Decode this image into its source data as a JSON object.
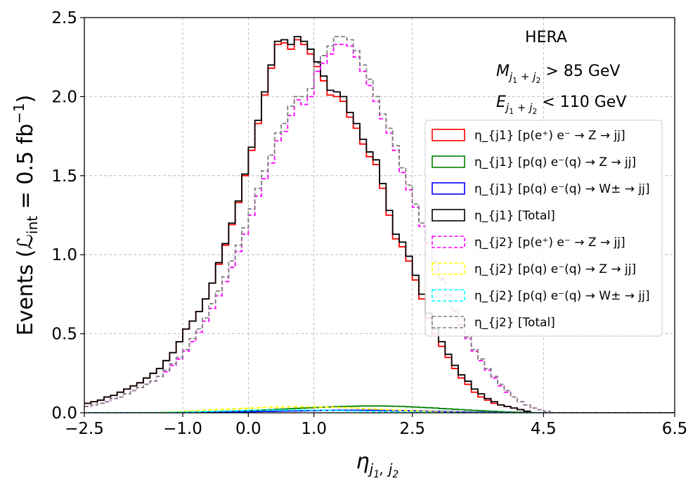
{
  "chart_data": {
    "type": "line",
    "style": "step-histogram",
    "xlabel": "η_{j1,j2}",
    "ylabel": "Events (ℒ_int = 0.5 fb⁻¹)",
    "xlim": [
      -2.5,
      6.5
    ],
    "ylim": [
      0,
      2.5
    ],
    "xticks": [
      -2.5,
      -1.0,
      0.0,
      1.0,
      2.5,
      4.5,
      6.5
    ],
    "xtick_labels": [
      "−2.5",
      "−1.0",
      "0.0",
      "1.0",
      "2.5",
      "4.5",
      "6.5"
    ],
    "yticks": [
      0,
      0.5,
      1.0,
      1.5,
      2.0,
      2.5
    ],
    "ytick_labels": [
      "0.0",
      "0.5",
      "1.0",
      "1.5",
      "2.0",
      "2.5"
    ],
    "grid": true,
    "annotations": [
      "HERA",
      "M_{j1+j2} > 85 GeV",
      "E_{j1+j2} < 110 GeV"
    ],
    "legend": {
      "position": "right",
      "entries": [
        {
          "label": "η_{j1} [p(e⁺) e⁻ → Z → jj]",
          "color": "#ff0000",
          "dash": "solid"
        },
        {
          "label": "η_{j1} [p(q) e⁻(q) → Z → jj]",
          "color": "#008000",
          "dash": "solid"
        },
        {
          "label": "η_{j1} [p(q) e⁻(q) → W± → jj]",
          "color": "#0000ff",
          "dash": "solid"
        },
        {
          "label": "η_{j1} [Total]",
          "color": "#000000",
          "dash": "solid"
        },
        {
          "label": "η_{j2} [p(e⁺) e⁻ → Z → jj]",
          "color": "#ff00ff",
          "dash": "dashed"
        },
        {
          "label": "η_{j2} [p(q) e⁻(q) → Z → jj]",
          "color": "#ffff00",
          "dash": "dashed"
        },
        {
          "label": "η_{j2} [p(q) e⁻(q) → W± → jj]",
          "color": "#00ffff",
          "dash": "dashed"
        },
        {
          "label": "η_{j2} [Total]",
          "color": "#808080",
          "dash": "dashed"
        }
      ]
    },
    "bin_start": -2.5,
    "bin_width": 0.1,
    "series": [
      {
        "name": "eta_j1 p(e+)e- Z jj",
        "color": "#ff0000",
        "dash": "solid",
        "values": [
          0.06,
          0.07,
          0.08,
          0.1,
          0.11,
          0.13,
          0.15,
          0.17,
          0.19,
          0.22,
          0.25,
          0.28,
          0.33,
          0.38,
          0.45,
          0.53,
          0.58,
          0.64,
          0.72,
          0.82,
          0.94,
          1.06,
          1.19,
          1.33,
          1.5,
          1.66,
          1.83,
          2.01,
          2.18,
          2.33,
          2.34,
          2.3,
          2.36,
          2.33,
          2.27,
          2.19,
          2.1,
          2.01,
          2.0,
          1.97,
          1.87,
          1.8,
          1.7,
          1.62,
          1.57,
          1.42,
          1.25,
          1.1,
          1.05,
          0.96,
          0.84,
          0.72,
          0.6,
          0.5,
          0.42,
          0.35,
          0.28,
          0.22,
          0.18,
          0.13,
          0.1,
          0.08,
          0.06,
          0.05,
          0.04,
          0.03,
          0.02,
          0.01,
          0,
          0,
          0,
          0,
          0,
          0,
          0,
          0,
          0,
          0,
          0,
          0,
          0,
          0,
          0,
          0,
          0,
          0,
          0,
          0,
          0,
          0
        ]
      },
      {
        "name": "eta_j1 p(q)e-(q) Z jj",
        "color": "#008000",
        "dash": "solid",
        "values": [
          0,
          0,
          0,
          0,
          0,
          0,
          0,
          0,
          0,
          0,
          0,
          0,
          0,
          0.001,
          0.002,
          0.002,
          0.003,
          0.004,
          0.005,
          0.006,
          0.007,
          0.008,
          0.01,
          0.011,
          0.013,
          0.015,
          0.016,
          0.018,
          0.02,
          0.022,
          0.024,
          0.026,
          0.028,
          0.03,
          0.032,
          0.034,
          0.036,
          0.037,
          0.039,
          0.04,
          0.041,
          0.042,
          0.043,
          0.043,
          0.043,
          0.043,
          0.042,
          0.041,
          0.04,
          0.038,
          0.036,
          0.034,
          0.032,
          0.03,
          0.027,
          0.025,
          0.022,
          0.02,
          0.017,
          0.015,
          0.013,
          0.011,
          0.009,
          0.007,
          0.005,
          0.004,
          0.003,
          0.002,
          0.001,
          0,
          0,
          0,
          0,
          0,
          0,
          0,
          0,
          0,
          0,
          0,
          0,
          0,
          0,
          0,
          0,
          0,
          0,
          0,
          0,
          0
        ]
      },
      {
        "name": "eta_j1 p(q)e-(q) W jj",
        "color": "#0000ff",
        "dash": "solid",
        "values": [
          0,
          0,
          0,
          0,
          0,
          0,
          0,
          0,
          0,
          0,
          0,
          0,
          0,
          0,
          0.001,
          0.001,
          0.002,
          0.002,
          0.003,
          0.003,
          0.004,
          0.004,
          0.005,
          0.006,
          0.006,
          0.007,
          0.008,
          0.009,
          0.009,
          0.01,
          0.011,
          0.012,
          0.012,
          0.013,
          0.014,
          0.014,
          0.015,
          0.015,
          0.016,
          0.016,
          0.016,
          0.016,
          0.016,
          0.016,
          0.016,
          0.015,
          0.015,
          0.014,
          0.014,
          0.013,
          0.012,
          0.011,
          0.01,
          0.009,
          0.008,
          0.007,
          0.006,
          0.005,
          0.004,
          0.003,
          0.003,
          0.002,
          0.002,
          0.001,
          0.001,
          0,
          0,
          0,
          0,
          0,
          0,
          0,
          0,
          0,
          0,
          0,
          0,
          0,
          0,
          0,
          0,
          0,
          0,
          0,
          0,
          0,
          0,
          0,
          0,
          0
        ]
      },
      {
        "name": "eta_j1 Total",
        "color": "#000000",
        "dash": "solid",
        "values": [
          0.06,
          0.07,
          0.08,
          0.1,
          0.11,
          0.13,
          0.15,
          0.17,
          0.19,
          0.22,
          0.25,
          0.28,
          0.33,
          0.38,
          0.45,
          0.53,
          0.58,
          0.64,
          0.72,
          0.82,
          0.95,
          1.07,
          1.2,
          1.34,
          1.51,
          1.68,
          1.85,
          2.03,
          2.2,
          2.35,
          2.36,
          2.33,
          2.38,
          2.35,
          2.3,
          2.22,
          2.13,
          2.04,
          2.03,
          2.0,
          1.9,
          1.83,
          1.73,
          1.65,
          1.6,
          1.45,
          1.28,
          1.13,
          1.08,
          0.99,
          0.87,
          0.75,
          0.63,
          0.53,
          0.45,
          0.37,
          0.3,
          0.24,
          0.2,
          0.15,
          0.12,
          0.09,
          0.07,
          0.05,
          0.04,
          0.03,
          0.02,
          0.01,
          0,
          0,
          0,
          0,
          0,
          0,
          0,
          0,
          0,
          0,
          0,
          0,
          0,
          0,
          0,
          0,
          0,
          0,
          0,
          0,
          0,
          0
        ]
      },
      {
        "name": "eta_j2 p(e+)e- Z jj",
        "color": "#ff00ff",
        "dash": "dashed",
        "values": [
          0.04,
          0.05,
          0.06,
          0.07,
          0.09,
          0.1,
          0.12,
          0.14,
          0.16,
          0.18,
          0.2,
          0.23,
          0.26,
          0.3,
          0.34,
          0.39,
          0.45,
          0.51,
          0.58,
          0.66,
          0.74,
          0.83,
          0.92,
          1.02,
          1.13,
          1.25,
          1.37,
          1.48,
          1.58,
          1.72,
          1.78,
          1.88,
          1.98,
          1.95,
          2.0,
          2.16,
          2.21,
          2.27,
          2.33,
          2.33,
          2.32,
          2.25,
          2.16,
          2.07,
          1.97,
          1.86,
          1.77,
          1.66,
          1.52,
          1.41,
          1.3,
          1.18,
          1.07,
          0.95,
          0.84,
          0.74,
          0.64,
          0.55,
          0.47,
          0.39,
          0.33,
          0.27,
          0.22,
          0.17,
          0.13,
          0.1,
          0.07,
          0.05,
          0.03,
          0.02,
          0.01,
          0,
          0,
          0,
          0,
          0,
          0,
          0,
          0,
          0,
          0,
          0,
          0,
          0,
          0,
          0,
          0,
          0,
          0,
          0
        ]
      },
      {
        "name": "eta_j2 p(q)e-(q) Z jj",
        "color": "#ffff00",
        "dash": "dashed",
        "values": [
          0,
          0,
          0,
          0,
          0,
          0,
          0,
          0,
          0.001,
          0.002,
          0.003,
          0.004,
          0.005,
          0.006,
          0.008,
          0.01,
          0.012,
          0.014,
          0.016,
          0.018,
          0.02,
          0.022,
          0.024,
          0.026,
          0.028,
          0.03,
          0.032,
          0.034,
          0.035,
          0.036,
          0.037,
          0.038,
          0.038,
          0.038,
          0.038,
          0.037,
          0.036,
          0.035,
          0.034,
          0.033,
          0.031,
          0.029,
          0.027,
          0.025,
          0.023,
          0.021,
          0.019,
          0.017,
          0.015,
          0.013,
          0.011,
          0.009,
          0.008,
          0.006,
          0.005,
          0.004,
          0.003,
          0.002,
          0.001,
          0.001,
          0,
          0,
          0,
          0,
          0,
          0,
          0,
          0,
          0,
          0,
          0,
          0,
          0,
          0,
          0,
          0,
          0,
          0,
          0,
          0,
          0,
          0,
          0,
          0,
          0,
          0,
          0,
          0,
          0,
          0
        ]
      },
      {
        "name": "eta_j2 p(q)e-(q) W jj",
        "color": "#00ffff",
        "dash": "dashed",
        "values": [
          0,
          0,
          0,
          0,
          0,
          0,
          0,
          0,
          0,
          0.001,
          0.001,
          0.002,
          0.002,
          0.003,
          0.004,
          0.005,
          0.006,
          0.007,
          0.008,
          0.009,
          0.01,
          0.011,
          0.012,
          0.013,
          0.014,
          0.015,
          0.016,
          0.016,
          0.017,
          0.017,
          0.017,
          0.017,
          0.017,
          0.017,
          0.016,
          0.016,
          0.015,
          0.015,
          0.014,
          0.013,
          0.012,
          0.011,
          0.01,
          0.009,
          0.008,
          0.007,
          0.006,
          0.005,
          0.004,
          0.004,
          0.003,
          0.002,
          0.002,
          0.001,
          0.001,
          0,
          0,
          0,
          0,
          0,
          0,
          0,
          0,
          0,
          0,
          0,
          0,
          0,
          0,
          0,
          0,
          0,
          0,
          0,
          0,
          0,
          0,
          0,
          0,
          0,
          0,
          0,
          0,
          0,
          0,
          0,
          0,
          0,
          0,
          0
        ]
      },
      {
        "name": "eta_j2 Total",
        "color": "#808080",
        "dash": "dashed",
        "values": [
          0.04,
          0.05,
          0.06,
          0.07,
          0.09,
          0.1,
          0.12,
          0.14,
          0.16,
          0.18,
          0.2,
          0.23,
          0.27,
          0.31,
          0.35,
          0.4,
          0.47,
          0.53,
          0.6,
          0.69,
          0.77,
          0.86,
          0.96,
          1.06,
          1.17,
          1.29,
          1.42,
          1.53,
          1.63,
          1.77,
          1.83,
          1.94,
          2.0,
          2.0,
          2.05,
          2.21,
          2.26,
          2.32,
          2.38,
          2.38,
          2.36,
          2.29,
          2.2,
          2.11,
          2.0,
          1.89,
          1.8,
          1.69,
          1.55,
          1.44,
          1.32,
          1.2,
          1.08,
          0.96,
          0.85,
          0.75,
          0.65,
          0.56,
          0.48,
          0.4,
          0.34,
          0.28,
          0.23,
          0.18,
          0.14,
          0.1,
          0.07,
          0.05,
          0.03,
          0.02,
          0.01,
          0,
          0,
          0,
          0,
          0,
          0,
          0,
          0,
          0,
          0,
          0,
          0,
          0,
          0,
          0,
          0,
          0,
          0,
          0
        ]
      }
    ]
  }
}
